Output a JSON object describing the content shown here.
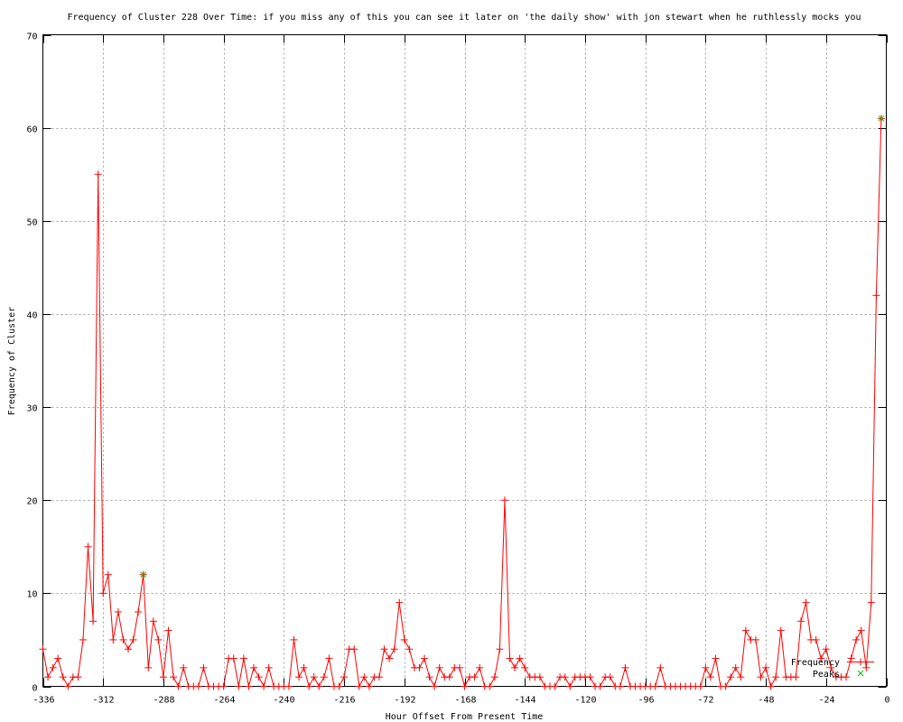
{
  "chart_data": {
    "type": "line",
    "title": "Frequency of Cluster 228 Over Time: if you miss any of this you can see it later on 'the daily show' with jon stewart when he ruthlessly mocks you",
    "xlabel": "Hour Offset From Present Time",
    "ylabel": "Frequency of Cluster",
    "xlim": [
      -336,
      0
    ],
    "ylim": [
      0,
      70
    ],
    "xticks": [
      -336,
      -312,
      -288,
      -264,
      -240,
      -216,
      -192,
      -168,
      -144,
      -120,
      -96,
      -72,
      -48,
      -24,
      0
    ],
    "yticks": [
      0,
      10,
      20,
      30,
      40,
      50,
      60,
      70
    ],
    "grid": true,
    "legend_position": "bottom-right",
    "series": [
      {
        "name": "Frequency",
        "color": "#ff0000",
        "marker": "plus",
        "x_start": -336,
        "x_step": 2,
        "values": [
          4,
          1,
          2,
          3,
          1,
          0,
          1,
          1,
          5,
          15,
          7,
          55,
          10,
          12,
          5,
          8,
          5,
          4,
          5,
          8,
          12,
          2,
          7,
          5,
          1,
          6,
          1,
          0,
          2,
          0,
          0,
          0,
          2,
          0,
          0,
          0,
          0,
          3,
          3,
          0,
          3,
          0,
          2,
          1,
          0,
          2,
          0,
          0,
          0,
          0,
          5,
          1,
          2,
          0,
          1,
          0,
          1,
          3,
          0,
          0,
          1,
          4,
          4,
          0,
          1,
          0,
          1,
          1,
          4,
          3,
          4,
          9,
          5,
          4,
          2,
          2,
          3,
          1,
          0,
          2,
          1,
          1,
          2,
          2,
          0,
          1,
          1,
          2,
          0,
          0,
          1,
          4,
          20,
          3,
          2,
          3,
          2,
          1,
          1,
          1,
          0,
          0,
          0,
          1,
          1,
          0,
          1,
          1,
          1,
          1,
          0,
          0,
          1,
          1,
          0,
          0,
          2,
          0,
          0,
          0,
          0,
          0,
          0,
          2,
          0,
          0,
          0,
          0,
          0,
          0,
          0,
          0,
          2,
          1,
          3,
          0,
          0,
          1,
          2,
          1,
          6,
          5,
          5,
          1,
          2,
          0,
          1,
          6,
          1,
          1,
          1,
          7,
          9,
          5,
          5,
          3,
          4,
          2,
          1,
          1,
          1,
          3,
          5,
          6,
          2,
          9,
          42,
          61
        ]
      },
      {
        "name": "Peaks",
        "color": "#00c000",
        "marker": "cross",
        "points": [
          [
            -296,
            12
          ],
          [
            -2,
            61
          ]
        ]
      }
    ]
  }
}
